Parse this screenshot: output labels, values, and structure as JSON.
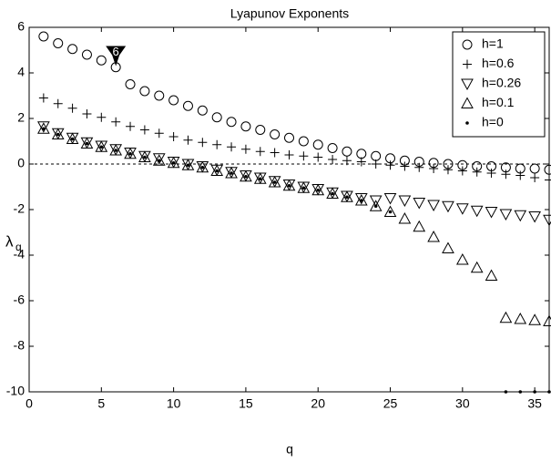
{
  "chart_data": {
    "type": "scatter",
    "title": "Lyapunov Exponents",
    "xlabel": "q",
    "ylabel": "λ",
    "ylabel_subscript": "q",
    "annotation": "6",
    "annotation_x": 6,
    "annotation_y": 4.7,
    "x": [
      1,
      2,
      3,
      4,
      5,
      6,
      7,
      8,
      9,
      10,
      11,
      12,
      13,
      14,
      15,
      16,
      17,
      18,
      19,
      20,
      21,
      22,
      23,
      24,
      25,
      26,
      27,
      28,
      29,
      30,
      31,
      32,
      33,
      34,
      35,
      36
    ],
    "xlim": [
      0,
      36
    ],
    "xticks": [
      0,
      5,
      10,
      15,
      20,
      25,
      30,
      35
    ],
    "ylim": [
      -10,
      6
    ],
    "yticks": [
      -10,
      -8,
      -6,
      -4,
      -2,
      0,
      2,
      4,
      6
    ],
    "reference_line": 0,
    "legend": "upper right",
    "series": [
      {
        "name": "h=1",
        "marker": "circle",
        "color": "#000000",
        "values": [
          5.6,
          5.3,
          5.05,
          4.8,
          4.55,
          4.25,
          3.5,
          3.2,
          3.0,
          2.8,
          2.55,
          2.35,
          2.05,
          1.85,
          1.65,
          1.5,
          1.3,
          1.15,
          1.0,
          0.85,
          0.7,
          0.55,
          0.45,
          0.35,
          0.25,
          0.15,
          0.1,
          0.05,
          0.0,
          -0.05,
          -0.1,
          -0.1,
          -0.15,
          -0.2,
          -0.2,
          -0.25
        ]
      },
      {
        "name": "h=0.6",
        "marker": "plus",
        "color": "#000000",
        "values": [
          2.9,
          2.65,
          2.45,
          2.2,
          2.05,
          1.85,
          1.65,
          1.5,
          1.35,
          1.2,
          1.05,
          0.95,
          0.85,
          0.75,
          0.65,
          0.55,
          0.5,
          0.4,
          0.35,
          0.3,
          0.2,
          0.15,
          0.1,
          0.0,
          -0.05,
          -0.1,
          -0.15,
          -0.2,
          -0.25,
          -0.3,
          -0.35,
          -0.4,
          -0.45,
          -0.5,
          -0.6,
          -0.7
        ]
      },
      {
        "name": "h=0.26",
        "marker": "triangle-down",
        "color": "#000000",
        "values": [
          1.65,
          1.35,
          1.15,
          0.95,
          0.8,
          0.65,
          0.5,
          0.35,
          0.25,
          0.1,
          0.0,
          -0.1,
          -0.25,
          -0.35,
          -0.5,
          -0.6,
          -0.75,
          -0.9,
          -1.0,
          -1.1,
          -1.25,
          -1.4,
          -1.5,
          -1.6,
          -1.5,
          -1.6,
          -1.7,
          -1.8,
          -1.85,
          -1.95,
          -2.05,
          -2.1,
          -2.2,
          -2.25,
          -2.3,
          -2.45
        ]
      },
      {
        "name": "h=0.1",
        "marker": "triangle-up",
        "color": "#000000",
        "values": [
          1.55,
          1.3,
          1.1,
          0.9,
          0.75,
          0.6,
          0.45,
          0.3,
          0.15,
          0.05,
          -0.05,
          -0.15,
          -0.3,
          -0.4,
          -0.55,
          -0.65,
          -0.8,
          -0.95,
          -1.05,
          -1.15,
          -1.3,
          -1.45,
          -1.6,
          -1.85,
          -2.1,
          -2.4,
          -2.75,
          -3.2,
          -3.7,
          -4.2,
          -4.55,
          -4.9,
          -6.75,
          -6.8,
          -6.85,
          -6.9
        ]
      },
      {
        "name": "h=0",
        "marker": "dot",
        "color": "#000000",
        "values": [
          1.55,
          1.3,
          1.1,
          0.9,
          0.75,
          0.6,
          0.45,
          0.3,
          0.15,
          0.05,
          -0.05,
          -0.15,
          -0.3,
          -0.4,
          -0.55,
          -0.65,
          -0.8,
          -0.95,
          -1.05,
          -1.15,
          -1.3,
          -1.45,
          -1.6,
          -1.85,
          -2.1,
          null,
          null,
          null,
          null,
          null,
          null,
          null,
          -10,
          -10,
          -10,
          -10
        ]
      }
    ]
  }
}
